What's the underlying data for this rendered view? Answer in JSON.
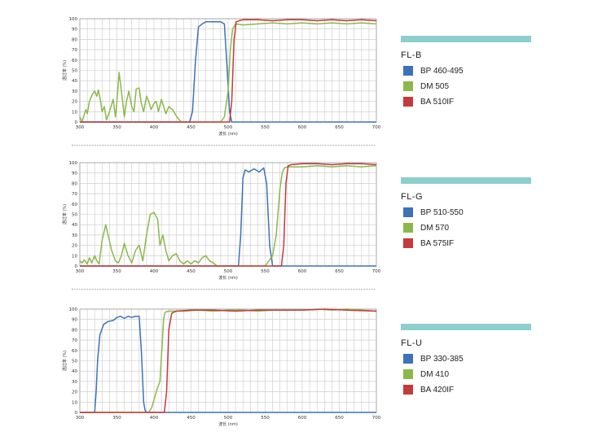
{
  "colors": {
    "bp": "#3d72b8",
    "dm": "#8bb84a",
    "ba": "#c53a3a",
    "accent": "#8ccfcd",
    "grid": "#c8c8c8"
  },
  "chart_data": [
    {
      "type": "line",
      "title": "FL-B",
      "ylabel": "透过率 (%)",
      "xlabel": "波长 (nm)",
      "xlim": [
        300,
        700
      ],
      "ylim": [
        0,
        100
      ],
      "xticks": [
        300,
        350,
        400,
        450,
        500,
        550,
        600,
        650,
        700
      ],
      "yticks": [
        0,
        10,
        20,
        30,
        40,
        50,
        60,
        70,
        80,
        90,
        100
      ],
      "grid": true,
      "legend": "right",
      "series": [
        {
          "name": "BP 460-495",
          "color": "#3d72b8",
          "x": [
            300,
            448,
            452,
            456,
            460,
            465,
            470,
            480,
            490,
            495,
            498,
            502,
            505,
            700
          ],
          "y": [
            0,
            0,
            10,
            60,
            92,
            95,
            97,
            97,
            97,
            95,
            60,
            10,
            0,
            0
          ]
        },
        {
          "name": "DM 505",
          "color": "#8bb84a",
          "x": [
            300,
            303,
            305,
            308,
            310,
            313,
            317,
            320,
            323,
            325,
            328,
            330,
            333,
            336,
            340,
            345,
            348,
            350,
            353,
            356,
            360,
            363,
            366,
            370,
            373,
            376,
            380,
            383,
            386,
            390,
            393,
            396,
            400,
            403,
            406,
            410,
            413,
            416,
            420,
            425,
            430,
            433,
            437,
            440,
            445,
            450,
            460,
            470,
            480,
            490,
            495,
            500,
            503,
            506,
            510,
            520,
            540,
            560,
            580,
            600,
            620,
            640,
            660,
            680,
            700
          ],
          "y": [
            5,
            0,
            5,
            12,
            8,
            20,
            27,
            30,
            25,
            31,
            20,
            10,
            15,
            2,
            10,
            22,
            5,
            20,
            48,
            30,
            5,
            20,
            30,
            15,
            10,
            32,
            33,
            18,
            10,
            25,
            20,
            12,
            18,
            20,
            10,
            22,
            15,
            8,
            15,
            12,
            6,
            3,
            0,
            0,
            0,
            0,
            0,
            0,
            0,
            0,
            5,
            30,
            70,
            90,
            95,
            94,
            95,
            96,
            95,
            96,
            95,
            96,
            95,
            96,
            95
          ]
        },
        {
          "name": "BA 510IF",
          "color": "#c53a3a",
          "x": [
            300,
            502,
            505,
            508,
            511,
            515,
            520,
            540,
            560,
            580,
            600,
            620,
            640,
            660,
            680,
            700
          ],
          "y": [
            0,
            0,
            20,
            80,
            97,
            98,
            99,
            99,
            98,
            99,
            99,
            98,
            99,
            98,
            99,
            98
          ]
        }
      ]
    },
    {
      "type": "line",
      "title": "FL-G",
      "ylabel": "透过率 (%)",
      "xlabel": "波长 (nm)",
      "xlim": [
        300,
        700
      ],
      "ylim": [
        0,
        100
      ],
      "xticks": [
        300,
        350,
        400,
        450,
        500,
        550,
        600,
        650,
        700
      ],
      "yticks": [
        0,
        10,
        20,
        30,
        40,
        50,
        60,
        70,
        80,
        90,
        100
      ],
      "grid": true,
      "legend": "right",
      "series": [
        {
          "name": "BP 510-550",
          "color": "#3d72b8",
          "x": [
            300,
            514,
            517,
            520,
            523,
            528,
            535,
            542,
            548,
            552,
            556,
            560,
            700
          ],
          "y": [
            0,
            0,
            30,
            85,
            93,
            91,
            94,
            91,
            95,
            80,
            20,
            0,
            0
          ]
        },
        {
          "name": "DM 570",
          "color": "#8bb84a",
          "x": [
            300,
            303,
            306,
            310,
            313,
            316,
            320,
            323,
            326,
            330,
            335,
            338,
            343,
            348,
            352,
            356,
            360,
            365,
            370,
            375,
            380,
            385,
            390,
            395,
            400,
            405,
            408,
            412,
            416,
            420,
            425,
            430,
            435,
            440,
            445,
            450,
            455,
            460,
            465,
            470,
            475,
            480,
            485,
            490,
            500,
            550,
            560,
            565,
            570,
            573,
            576,
            580,
            600,
            620,
            640,
            660,
            680,
            700
          ],
          "y": [
            5,
            3,
            6,
            2,
            8,
            3,
            10,
            5,
            2,
            25,
            40,
            30,
            15,
            5,
            3,
            10,
            22,
            10,
            3,
            15,
            20,
            5,
            30,
            50,
            52,
            45,
            20,
            30,
            15,
            5,
            10,
            12,
            5,
            2,
            5,
            2,
            5,
            3,
            8,
            10,
            5,
            3,
            0,
            0,
            0,
            0,
            10,
            30,
            75,
            90,
            95,
            96,
            96,
            97,
            96,
            97,
            96,
            97
          ]
        },
        {
          "name": "BA 575IF",
          "color": "#c53a3a",
          "x": [
            300,
            572,
            575,
            578,
            581,
            585,
            600,
            620,
            640,
            660,
            680,
            700
          ],
          "y": [
            0,
            0,
            20,
            80,
            97,
            98,
            99,
            99,
            98,
            99,
            99,
            98
          ]
        }
      ]
    },
    {
      "type": "line",
      "title": "FL-U",
      "ylabel": "透过率 (%)",
      "xlabel": "波长 (nm)",
      "xlim": [
        300,
        700
      ],
      "ylim": [
        0,
        100
      ],
      "xticks": [
        300,
        350,
        400,
        450,
        500,
        550,
        600,
        650,
        700
      ],
      "yticks": [
        0,
        10,
        20,
        30,
        40,
        50,
        60,
        70,
        80,
        90,
        100
      ],
      "grid": true,
      "legend": "right",
      "series": [
        {
          "name": "BP 330-385",
          "color": "#3d72b8",
          "x": [
            300,
            320,
            322,
            324,
            327,
            332,
            338,
            345,
            350,
            355,
            360,
            365,
            370,
            375,
            380,
            383,
            386,
            388,
            390,
            700
          ],
          "y": [
            0,
            0,
            20,
            50,
            75,
            85,
            88,
            89,
            92,
            93,
            91,
            93,
            92,
            93,
            93,
            60,
            10,
            2,
            0,
            0
          ]
        },
        {
          "name": "DM 410",
          "color": "#8bb84a",
          "x": [
            300,
            393,
            397,
            400,
            404,
            408,
            411,
            413,
            415,
            420,
            440,
            460,
            480,
            500,
            520,
            540,
            560,
            580,
            600,
            620,
            640,
            660,
            680,
            700
          ],
          "y": [
            0,
            0,
            5,
            12,
            22,
            30,
            65,
            90,
            97,
            98,
            98,
            99,
            98,
            99,
            99,
            98,
            99,
            99,
            99,
            100,
            99,
            100,
            99,
            98
          ]
        },
        {
          "name": "BA 420IF",
          "color": "#c53a3a",
          "x": [
            300,
            414,
            417,
            420,
            424,
            430,
            450,
            480,
            510,
            540,
            570,
            600,
            630,
            660,
            700
          ],
          "y": [
            0,
            0,
            20,
            80,
            96,
            98,
            99,
            99,
            98,
            99,
            99,
            99,
            100,
            99,
            98
          ]
        }
      ]
    }
  ]
}
